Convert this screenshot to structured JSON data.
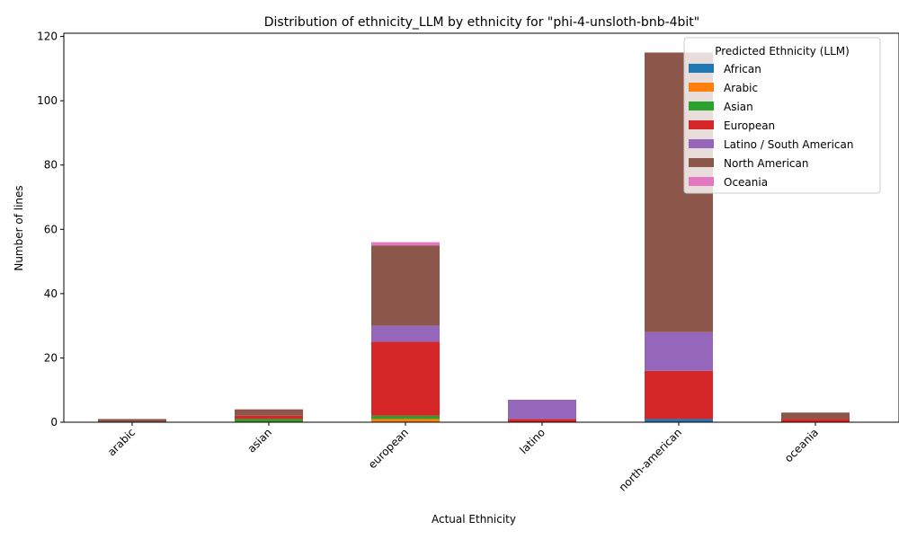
{
  "chart_data": {
    "type": "bar",
    "stacked": true,
    "title": "Distribution of ethnicity_LLM by ethnicity for \"phi-4-unsloth-bnb-4bit\"",
    "xlabel": "Actual Ethnicity",
    "ylabel": "Number of lines",
    "ylim": [
      0,
      121
    ],
    "yticks": [
      0,
      20,
      40,
      60,
      80,
      100,
      120
    ],
    "categories": [
      "arabic",
      "asian",
      "european",
      "latino",
      "north-american",
      "oceania"
    ],
    "legend_title": "Predicted Ethnicity (LLM)",
    "legend_position": "top-right",
    "series": [
      {
        "name": "African",
        "color": "#1f77b4",
        "values": [
          0,
          0,
          0,
          0,
          1,
          0
        ]
      },
      {
        "name": "Arabic",
        "color": "#ff7f0e",
        "values": [
          0,
          0,
          1,
          0,
          0,
          0
        ]
      },
      {
        "name": "Asian",
        "color": "#2ca02c",
        "values": [
          0,
          1,
          1,
          0,
          0,
          0
        ]
      },
      {
        "name": "European",
        "color": "#d62728",
        "values": [
          0,
          1,
          23,
          1,
          15,
          1
        ]
      },
      {
        "name": "Latino / South American",
        "color": "#9467bd",
        "values": [
          0,
          0,
          5,
          6,
          12,
          0
        ]
      },
      {
        "name": "North American",
        "color": "#8c564b",
        "values": [
          1,
          2,
          25,
          0,
          87,
          2
        ]
      },
      {
        "name": "Oceania",
        "color": "#e377c2",
        "values": [
          0,
          0,
          1,
          0,
          0,
          0
        ]
      }
    ]
  }
}
